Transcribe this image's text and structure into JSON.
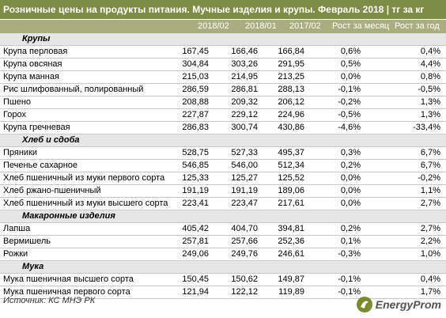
{
  "title": "Розничные цены на продукты питания. Мучные изделия и крупы. Февраль 2018 | тг за кг",
  "columns": [
    "2018/02",
    "2018/01",
    "2017/02",
    "Рост за месяц",
    "Рост за год"
  ],
  "rows": [
    {
      "type": "cat",
      "name": "Крупы"
    },
    {
      "type": "item",
      "name": "Крупа перловая",
      "v": [
        "167,45",
        "166,46",
        "166,84",
        "0,6%",
        "0,4%"
      ]
    },
    {
      "type": "item",
      "name": "Крупа овсяная",
      "v": [
        "304,84",
        "303,26",
        "291,95",
        "0,5%",
        "4,4%"
      ]
    },
    {
      "type": "item",
      "name": "Крупа манная",
      "v": [
        "215,03",
        "214,95",
        "213,25",
        "0,0%",
        "0,8%"
      ]
    },
    {
      "type": "item",
      "name": "Рис шлифованный, полированный",
      "v": [
        "286,59",
        "286,81",
        "288,13",
        "-0,1%",
        "-0,5%"
      ]
    },
    {
      "type": "item",
      "name": "Пшено",
      "v": [
        "208,88",
        "209,32",
        "206,12",
        "-0,2%",
        "1,3%"
      ]
    },
    {
      "type": "item",
      "name": "Горох",
      "v": [
        "227,87",
        "229,12",
        "224,96",
        "-0,5%",
        "1,3%"
      ]
    },
    {
      "type": "item",
      "name": "Крупа гречневая",
      "v": [
        "286,83",
        "300,74",
        "430,86",
        "-4,6%",
        "-33,4%"
      ]
    },
    {
      "type": "cat",
      "name": "Хлеб и сдоба"
    },
    {
      "type": "item",
      "name": "Пряники",
      "v": [
        "528,75",
        "527,33",
        "495,37",
        "0,3%",
        "6,7%"
      ]
    },
    {
      "type": "item",
      "name": "Печенье сахарное",
      "v": [
        "546,85",
        "546,00",
        "512,34",
        "0,2%",
        "6,7%"
      ]
    },
    {
      "type": "item",
      "name": "Хлеб пшеничный из муки первого сорта",
      "v": [
        "125,33",
        "125,27",
        "125,52",
        "0,0%",
        "-0,2%"
      ]
    },
    {
      "type": "item",
      "name": "Хлеб ржано-пшеничный",
      "v": [
        "191,19",
        "191,19",
        "189,06",
        "0,0%",
        "1,1%"
      ]
    },
    {
      "type": "item",
      "name": "Хлеб пшеничный из муки высшего сорта",
      "v": [
        "223,41",
        "223,47",
        "217,61",
        "0,0%",
        "2,7%"
      ]
    },
    {
      "type": "cat",
      "name": "Макаронные изделия"
    },
    {
      "type": "item",
      "name": "Лапша",
      "v": [
        "405,42",
        "404,70",
        "394,81",
        "0,2%",
        "2,7%"
      ]
    },
    {
      "type": "item",
      "name": "Вермишель",
      "v": [
        "257,81",
        "257,66",
        "252,36",
        "0,1%",
        "2,2%"
      ]
    },
    {
      "type": "item",
      "name": "Рожки",
      "v": [
        "249,06",
        "249,76",
        "246,61",
        "-0,3%",
        "1,0%"
      ]
    },
    {
      "type": "cat",
      "name": "Мука"
    },
    {
      "type": "item",
      "name": "Мука пшеничная высшего сорта",
      "v": [
        "150,45",
        "150,62",
        "149,87",
        "-0,1%",
        "0,4%"
      ]
    },
    {
      "type": "item",
      "name": "Мука пшеничная первого сорта",
      "v": [
        "121,94",
        "122,12",
        "119,89",
        "-0,1%",
        "1,7%"
      ]
    }
  ],
  "source": "Источник: КС МНЭ РК",
  "logo_text": "EnergyProm",
  "colors": {
    "title_bg": "#7f8c46",
    "header_bg": "#a8ae80",
    "category_bg": "#e6e6e6",
    "logo_green": "#7a8a2e"
  }
}
